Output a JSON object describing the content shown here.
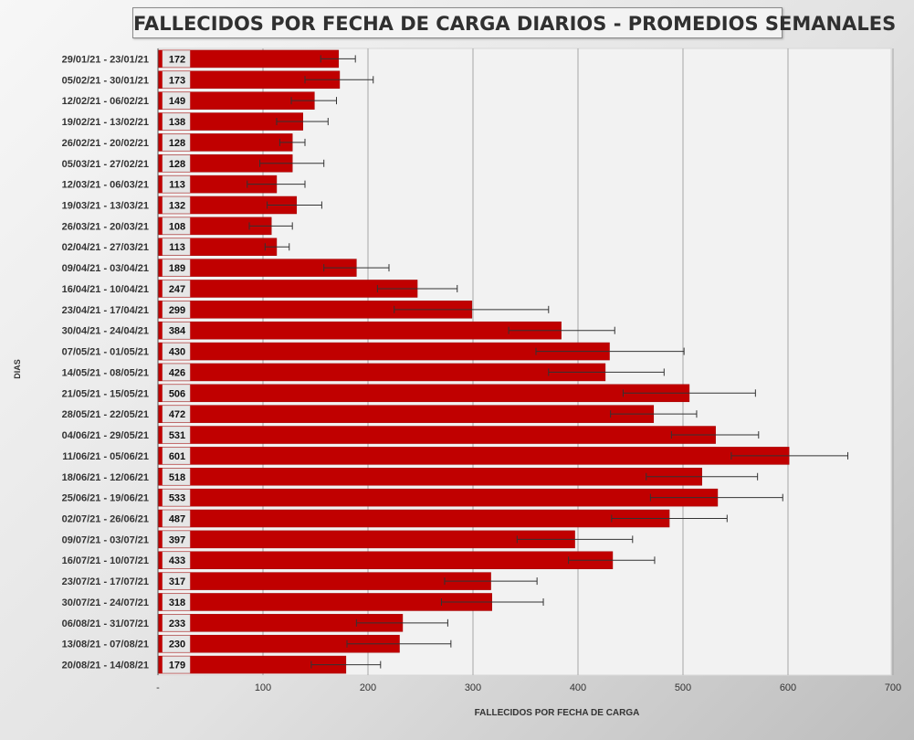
{
  "chart_data": {
    "type": "bar",
    "orientation": "horizontal",
    "title": "FALLECIDOS POR FECHA DE CARGA DIARIOS - PROMEDIOS SEMANALES",
    "xlabel": "FALLECIDOS POR FECHA DE CARGA",
    "ylabel": "DIAS",
    "xlim": [
      0,
      700
    ],
    "x_ticks": [
      "-",
      "100",
      "200",
      "300",
      "400",
      "500",
      "600",
      "700"
    ],
    "grid": "vertical",
    "bar_color": "#c00000",
    "error_bars": true,
    "categories": [
      "29/01/21 - 23/01/21",
      "05/02/21 - 30/01/21",
      "12/02/21 - 06/02/21",
      "19/02/21 - 13/02/21",
      "26/02/21 - 20/02/21",
      "05/03/21 - 27/02/21",
      "12/03/21 - 06/03/21",
      "19/03/21 - 13/03/21",
      "26/03/21 - 20/03/21",
      "02/04/21 - 27/03/21",
      "09/04/21 - 03/04/21",
      "16/04/21 - 10/04/21",
      "23/04/21 - 17/04/21",
      "30/04/21 - 24/04/21",
      "07/05/21 - 01/05/21",
      "14/05/21 - 08/05/21",
      "21/05/21 - 15/05/21",
      "28/05/21 - 22/05/21",
      "04/06/21 - 29/05/21",
      "11/06/21 - 05/06/21",
      "18/06/21 - 12/06/21",
      "25/06/21 - 19/06/21",
      "02/07/21 - 26/06/21",
      "09/07/21 - 03/07/21",
      "16/07/21 - 10/07/21",
      "23/07/21 - 17/07/21",
      "30/07/21 - 24/07/21",
      "06/08/21 - 31/07/21",
      "13/08/21 - 07/08/21",
      "20/08/21 - 14/08/21"
    ],
    "values": [
      172,
      173,
      149,
      138,
      128,
      128,
      113,
      132,
      108,
      113,
      189,
      247,
      299,
      384,
      430,
      426,
      506,
      472,
      531,
      601,
      518,
      533,
      487,
      397,
      433,
      317,
      318,
      233,
      230,
      179
    ],
    "error_low": [
      155,
      140,
      127,
      113,
      116,
      97,
      85,
      104,
      87,
      102,
      158,
      209,
      225,
      334,
      360,
      372,
      443,
      431,
      489,
      546,
      465,
      469,
      432,
      342,
      391,
      273,
      270,
      189,
      180,
      146
    ],
    "error_high": [
      188,
      205,
      170,
      162,
      140,
      158,
      140,
      156,
      128,
      125,
      220,
      285,
      372,
      435,
      501,
      482,
      569,
      513,
      572,
      657,
      571,
      595,
      542,
      452,
      473,
      361,
      367,
      276,
      279,
      212
    ]
  }
}
